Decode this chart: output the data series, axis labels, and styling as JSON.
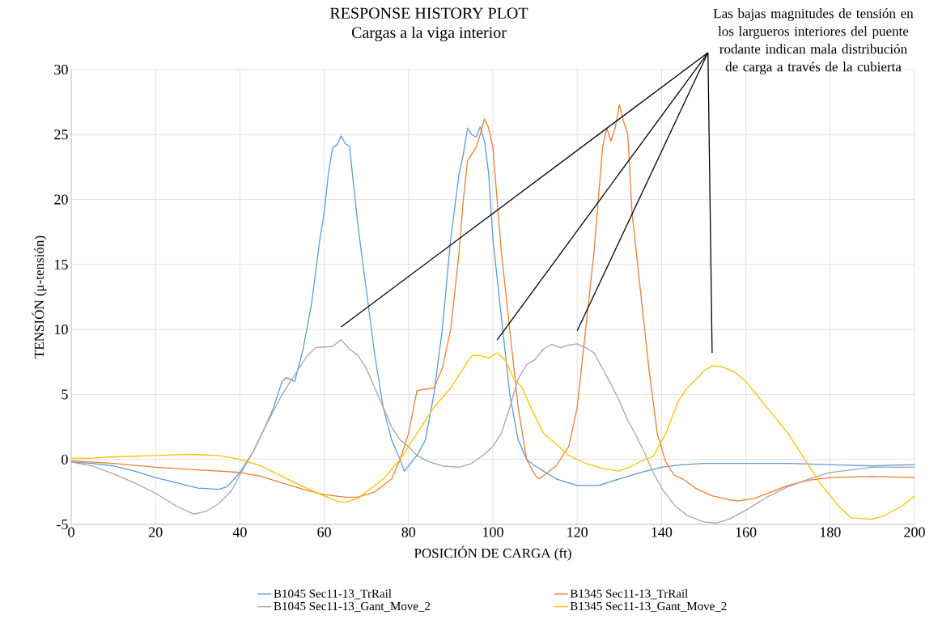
{
  "chart_data": {
    "type": "line",
    "title": "RESPONSE HISTORY PLOT",
    "subtitle": "Cargas a la viga interior",
    "xlabel": "POSICIÓN DE CARGA (ft)",
    "ylabel": "TENSIÓN (μ-tensión)",
    "xlim": [
      0,
      200
    ],
    "xticks": [
      0,
      20,
      40,
      60,
      80,
      100,
      120,
      140,
      160,
      180,
      200
    ],
    "ylim": [
      -5,
      30
    ],
    "yticks": [
      -5,
      0,
      5,
      10,
      15,
      20,
      25,
      30
    ],
    "grid": true,
    "legend": "bottom",
    "marker": "none",
    "line_style": "solid",
    "annotations": [
      "Las bajas magnitudes de tensión en los largueros interiores del puente rodante indican mala distribución de carga a través de la cubierta"
    ],
    "series": [
      {
        "name": "B1045 Sec11-13_TrRail",
        "color": "#5b9bd5",
        "x": [
          0,
          5,
          10,
          15,
          20,
          25,
          30,
          35,
          37,
          40,
          43,
          46,
          48,
          50,
          51,
          53,
          55,
          57,
          59,
          60,
          61,
          62,
          63,
          64,
          65,
          66,
          67,
          68,
          70,
          72,
          74,
          76,
          78,
          79,
          80,
          82,
          84,
          86,
          88,
          90,
          92,
          93,
          94,
          95,
          96,
          97,
          98,
          99,
          100,
          102,
          104,
          106,
          108,
          110,
          112,
          115,
          120,
          125,
          130,
          135,
          140,
          145,
          150,
          160,
          170,
          180,
          190,
          200
        ],
        "values": [
          -0.2,
          -0.3,
          -0.5,
          -0.9,
          -1.4,
          -1.8,
          -2.2,
          -2.3,
          -2.1,
          -1.0,
          0.5,
          2.5,
          4,
          6,
          6.3,
          6,
          8.5,
          12,
          17,
          19,
          22,
          24,
          24.2,
          24.9,
          24.3,
          24.1,
          21,
          18,
          13,
          8,
          4,
          1.5,
          0,
          -0.9,
          -0.5,
          0.3,
          1.5,
          5,
          10,
          17,
          22,
          23.5,
          25.5,
          25,
          24.8,
          25.6,
          24.5,
          22,
          17,
          11,
          5,
          1.5,
          0,
          -0.5,
          -0.9,
          -1.5,
          -2,
          -2,
          -1.5,
          -1,
          -0.6,
          -0.4,
          -0.3,
          -0.3,
          -0.3,
          -0.4,
          -0.5,
          -0.4
        ]
      },
      {
        "name": "B1345 Sec11-13_TrRail",
        "color": "#ed7d31",
        "x": [
          0,
          10,
          20,
          30,
          40,
          45,
          50,
          55,
          60,
          65,
          68,
          72,
          76,
          78,
          80,
          82,
          84,
          86,
          88,
          90,
          92,
          93,
          94,
          96,
          97,
          98,
          99,
          100,
          101,
          102,
          104,
          106,
          108,
          110,
          111,
          113,
          115,
          118,
          120,
          122,
          124,
          126,
          127,
          128,
          129,
          130,
          131,
          132,
          133,
          135,
          137,
          139,
          141,
          143,
          145,
          148,
          152,
          156,
          158,
          162,
          166,
          170,
          175,
          180,
          190,
          200
        ],
        "values": [
          -0.1,
          -0.3,
          -0.6,
          -0.8,
          -1,
          -1.3,
          -1.8,
          -2.3,
          -2.7,
          -2.9,
          -2.9,
          -2.5,
          -1.5,
          0,
          2,
          5.3,
          5.4,
          5.5,
          7,
          10,
          16,
          20,
          23,
          24,
          25,
          26.2,
          25.5,
          24,
          20,
          16,
          10,
          4,
          0,
          -1.2,
          -1.5,
          -1,
          -0.5,
          1,
          4,
          10,
          16,
          24,
          25.5,
          24.5,
          25.5,
          27.3,
          26,
          25,
          19,
          13,
          7,
          2,
          -0.2,
          -1.2,
          -1.5,
          -2.2,
          -2.8,
          -3.1,
          -3.2,
          -3,
          -2.5,
          -2,
          -1.6,
          -1.4,
          -1.3,
          -1.4
        ]
      },
      {
        "name": "B1045 Sec11-13_Gant_Move_2",
        "color": "#a5a5a5",
        "x": [
          0,
          5,
          10,
          15,
          20,
          25,
          29,
          32,
          35,
          38,
          40,
          43,
          46,
          50,
          53,
          56,
          58,
          62,
          64,
          66,
          68,
          70,
          72,
          74,
          76,
          78,
          80,
          82,
          85,
          88,
          92,
          95,
          98,
          100,
          102,
          104,
          106,
          108,
          110,
          112,
          114,
          116,
          118,
          120,
          122,
          124,
          126,
          128,
          130,
          132,
          134,
          136,
          138,
          140,
          143,
          146,
          150,
          153,
          156,
          160,
          165,
          170,
          175,
          180,
          185,
          190,
          200
        ],
        "values": [
          -0.2,
          -0.5,
          -1.1,
          -1.8,
          -2.6,
          -3.6,
          -4.2,
          -4,
          -3.4,
          -2.4,
          -1.2,
          0.5,
          2.5,
          5,
          6.5,
          8,
          8.6,
          8.7,
          9.2,
          8.5,
          8,
          7,
          5.5,
          4,
          2.5,
          1.5,
          1,
          0.3,
          -0.2,
          -0.5,
          -0.6,
          -0.3,
          0.4,
          1,
          2,
          4,
          6.2,
          7.3,
          7.7,
          8.5,
          8.85,
          8.6,
          8.8,
          8.9,
          8.6,
          8.2,
          7,
          5.8,
          4.5,
          3,
          1.8,
          0.5,
          -1,
          -2.2,
          -3.5,
          -4.3,
          -4.8,
          -4.9,
          -4.6,
          -3.9,
          -2.9,
          -2.1,
          -1.5,
          -1,
          -0.8,
          -0.6,
          -0.6
        ]
      },
      {
        "name": "B1345 Sec11-13_Gant_Move_2",
        "color": "#ffc000",
        "x": [
          0,
          5,
          10,
          20,
          28,
          35,
          40,
          45,
          50,
          55,
          60,
          63,
          65,
          68,
          70,
          74,
          78,
          82,
          86,
          90,
          93,
          95,
          97,
          99,
          101,
          103,
          105,
          107,
          109,
          112,
          115,
          118,
          122,
          126,
          130,
          133,
          136,
          138,
          141,
          144,
          146,
          148,
          150,
          152,
          154,
          157,
          160,
          165,
          170,
          174,
          178,
          182,
          185,
          190,
          193,
          197,
          200
        ],
        "values": [
          0.1,
          0.1,
          0.2,
          0.3,
          0.4,
          0.3,
          0,
          -0.5,
          -1.3,
          -2.1,
          -2.8,
          -3.2,
          -3.3,
          -3,
          -2.5,
          -1.5,
          0,
          2,
          4,
          5.5,
          7,
          8,
          8,
          7.8,
          8.2,
          7.6,
          6.2,
          5.5,
          4,
          2,
          1.2,
          0.3,
          -0.3,
          -0.7,
          -0.9,
          -0.5,
          0,
          0.2,
          2,
          4.5,
          5.5,
          6.1,
          6.8,
          7.2,
          7.15,
          6.8,
          6,
          4,
          2,
          0,
          -2,
          -3.6,
          -4.5,
          -4.6,
          -4.3,
          -3.6,
          -2.8
        ]
      }
    ]
  }
}
